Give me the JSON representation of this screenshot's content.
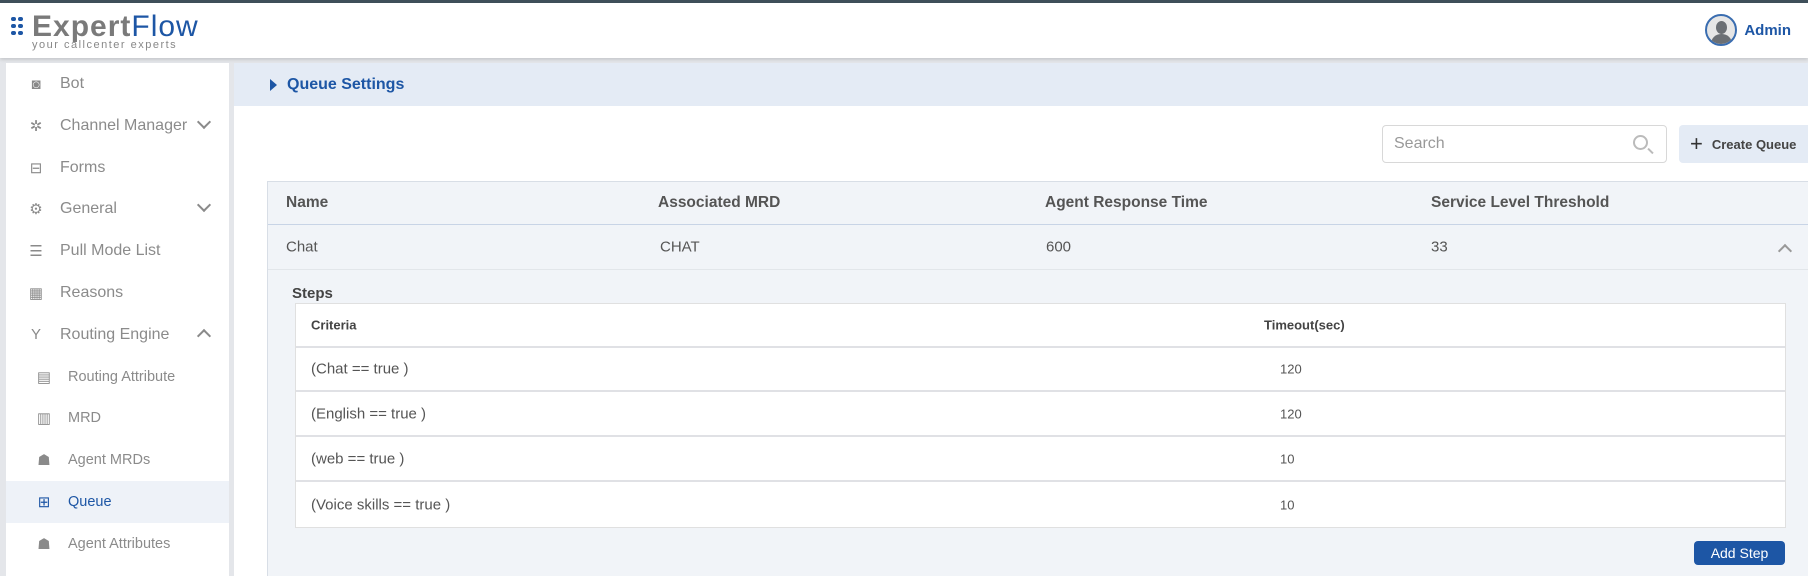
{
  "header": {
    "logo_a": "Expert",
    "logo_b": "Flow",
    "tagline": "your callcenter experts",
    "user": "Admin"
  },
  "sidebar": {
    "items": [
      {
        "label": "Bot",
        "icon": "bot-icon"
      },
      {
        "label": "Channel Manager",
        "icon": "network-icon",
        "chevron": "down"
      },
      {
        "label": "Forms",
        "icon": "form-icon"
      },
      {
        "label": "General",
        "icon": "gear-icon",
        "chevron": "down"
      },
      {
        "label": "Pull Mode List",
        "icon": "list-icon"
      },
      {
        "label": "Reasons",
        "icon": "grid-icon"
      },
      {
        "label": "Routing Engine",
        "icon": "fork-icon",
        "chevron": "up"
      },
      {
        "label": "Routing Attribute",
        "icon": "document-icon"
      },
      {
        "label": "MRD",
        "icon": "building-icon"
      },
      {
        "label": "Agent MRDs",
        "icon": "users-icon"
      },
      {
        "label": "Queue",
        "icon": "queue-add-icon",
        "active": true
      },
      {
        "label": "Agent Attributes",
        "icon": "users-icon"
      }
    ]
  },
  "main": {
    "breadcrumb": "Queue Settings",
    "search_placeholder": "Search",
    "create_queue": "Create Queue",
    "columns": [
      "Name",
      "Associated MRD",
      "Agent Response Time",
      "Service Level Threshold"
    ],
    "rows": [
      {
        "name": "Chat",
        "mrd": "CHAT",
        "art": "600",
        "slt": "33"
      }
    ],
    "steps": {
      "label": "Steps",
      "columns": [
        "Criteria",
        "Timeout(sec)"
      ],
      "rows": [
        {
          "criteria": "(Chat == true )",
          "timeout": "120"
        },
        {
          "criteria": "(English == true )",
          "timeout": "120"
        },
        {
          "criteria": "(web == true )",
          "timeout": "10"
        },
        {
          "criteria": "(Voice skills == true )",
          "timeout": "10"
        }
      ],
      "add_step": "Add Step"
    }
  },
  "colors": {
    "accent": "#1d56a5",
    "breadcrumb_bg": "#e4ebf5"
  }
}
